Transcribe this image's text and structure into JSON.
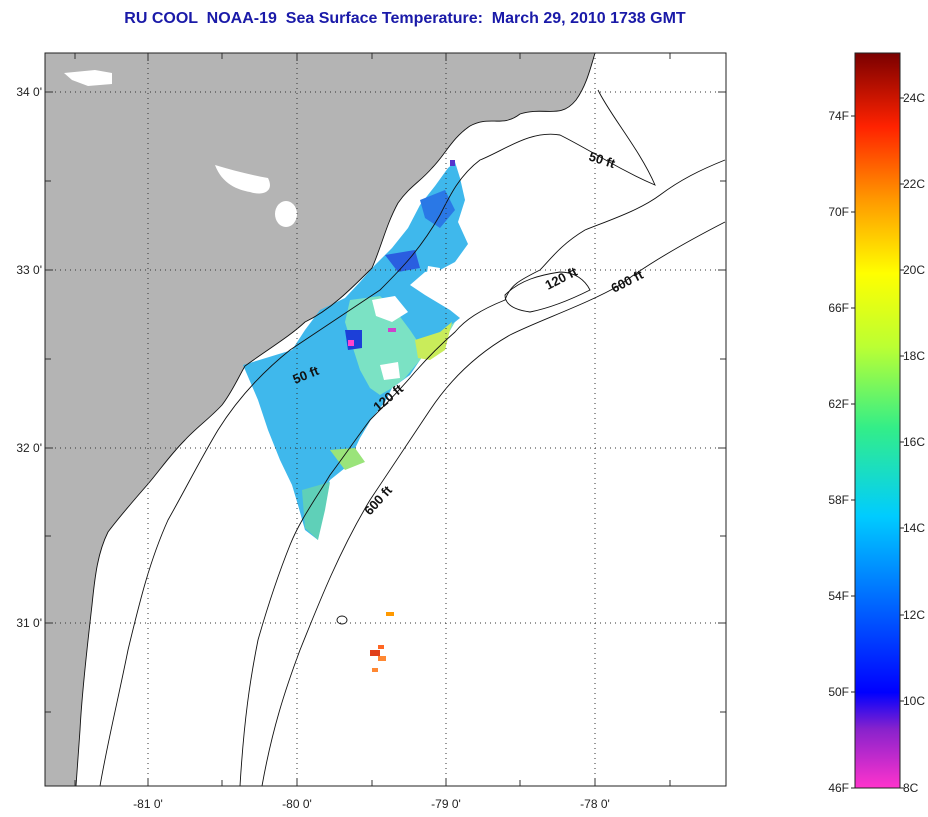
{
  "title": "RU COOL  NOAA-19  Sea Surface Temperature:  March 29, 2010 1738 GMT",
  "map": {
    "lat_ticks": [
      {
        "label": "34 0'",
        "lat": 34
      },
      {
        "label": "33 0'",
        "lat": 33
      },
      {
        "label": "32 0'",
        "lat": 32
      },
      {
        "label": "31 0'",
        "lat": 31
      }
    ],
    "lon_ticks": [
      {
        "label": "-81 0'",
        "lon": -81
      },
      {
        "label": "-80 0'",
        "lon": -80
      },
      {
        "label": "-79 0'",
        "lon": -79
      },
      {
        "label": "-78 0'",
        "lon": -78
      }
    ],
    "contour_labels": [
      {
        "text": "50 ft"
      },
      {
        "text": "50 ft"
      },
      {
        "text": "120 ft"
      },
      {
        "text": "120 ft"
      },
      {
        "text": "600 ft"
      },
      {
        "text": "600 ft"
      }
    ],
    "colors": {
      "land": "#b4b4b4",
      "ocean": "#ffffff",
      "grid": "#333333"
    }
  },
  "colorbar": {
    "fahrenheit_labels": [
      "74F",
      "70F",
      "66F",
      "62F",
      "58F",
      "54F",
      "50F",
      "46F"
    ],
    "celsius_labels": [
      "24C",
      "22C",
      "20C",
      "18C",
      "16C",
      "14C",
      "12C",
      "10C",
      "8C"
    ],
    "range_c": [
      8,
      25
    ],
    "colors": [
      "#ff33cc",
      "#8822cc",
      "#0000ff",
      "#0066ff",
      "#00ccff",
      "#33ee88",
      "#bbff33",
      "#ffff00",
      "#ff9900",
      "#ff3300",
      "#dd0000",
      "#880000"
    ]
  }
}
